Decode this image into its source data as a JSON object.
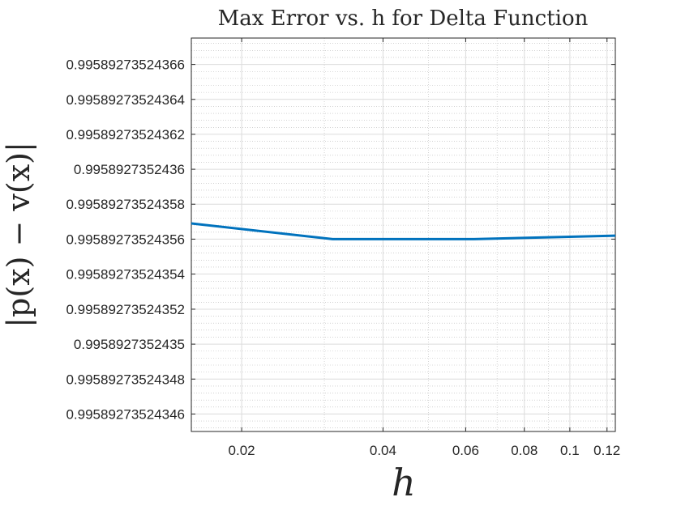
{
  "chart_data": {
    "type": "line",
    "title": "Max Error vs. h for Delta Function",
    "xlabel": "h",
    "ylabel": "|p(x) − v(x)|",
    "x_scale": "log",
    "xlim": [
      0.015625,
      0.125
    ],
    "ylim": [
      0.99589273524345,
      0.995892735243675
    ],
    "grid": true,
    "minor_grid": true,
    "x_ticks": [
      {
        "value": 0.02,
        "label": "0.02"
      },
      {
        "value": 0.04,
        "label": "0.04"
      },
      {
        "value": 0.06,
        "label": "0.06"
      },
      {
        "value": 0.08,
        "label": "0.08"
      },
      {
        "value": 0.1,
        "label": "0.1"
      },
      {
        "value": 0.12,
        "label": "0.12"
      }
    ],
    "y_ticks": [
      {
        "value": 0.99589273524346,
        "label": "0.99589273524346"
      },
      {
        "value": 0.99589273524348,
        "label": "0.99589273524348"
      },
      {
        "value": 0.9958927352435,
        "label": "0.9958927352435"
      },
      {
        "value": 0.99589273524352,
        "label": "0.99589273524352"
      },
      {
        "value": 0.99589273524354,
        "label": "0.99589273524354"
      },
      {
        "value": 0.99589273524356,
        "label": "0.99589273524356"
      },
      {
        "value": 0.99589273524358,
        "label": "0.99589273524358"
      },
      {
        "value": 0.9958927352436,
        "label": "0.9958927352436"
      },
      {
        "value": 0.99589273524362,
        "label": "0.99589273524362"
      },
      {
        "value": 0.99589273524364,
        "label": "0.99589273524364"
      },
      {
        "value": 0.99589273524366,
        "label": "0.99589273524366"
      }
    ],
    "series": [
      {
        "color": "#0072bd",
        "x": [
          0.015625,
          0.03125,
          0.0625,
          0.125
        ],
        "y": [
          0.995892735243569,
          0.99589273524356,
          0.99589273524356,
          0.995892735243562
        ]
      }
    ]
  }
}
